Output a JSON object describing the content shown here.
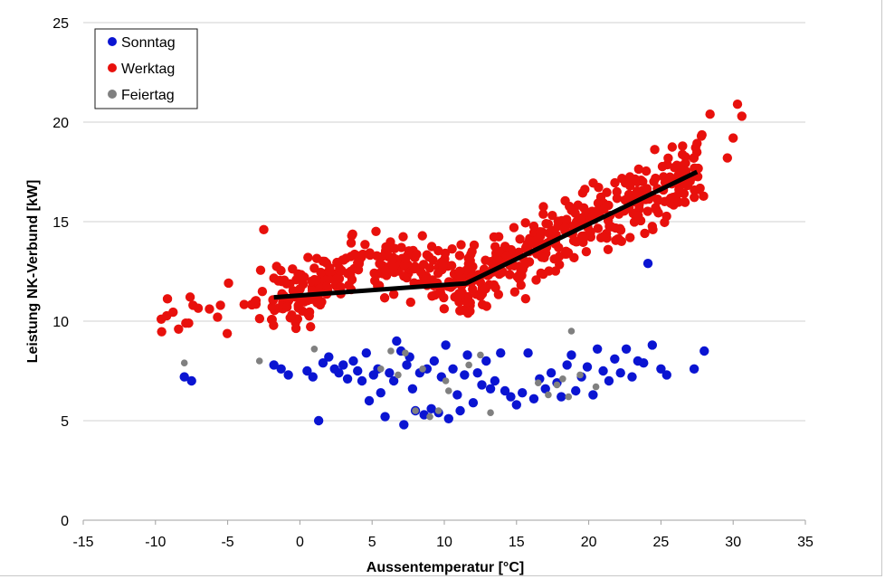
{
  "chart_data": {
    "type": "scatter",
    "xlabel": "Aussentemperatur [°C]",
    "ylabel": "Leistung NK-Verbund [kW]",
    "xlim": [
      -15,
      35
    ],
    "ylim": [
      0,
      25
    ],
    "x_ticks": [
      -15,
      -10,
      -5,
      0,
      5,
      10,
      15,
      20,
      25,
      30,
      35
    ],
    "y_ticks": [
      0,
      5,
      10,
      15,
      20,
      25
    ],
    "grid": "horizontal",
    "legend_position": "top-left",
    "series": [
      {
        "name": "Sonntag",
        "color": "#0a14d2",
        "marker": "circle",
        "points": [
          [
            -8.0,
            7.2
          ],
          [
            -7.5,
            7.0
          ],
          [
            -1.8,
            7.8
          ],
          [
            -1.3,
            7.6
          ],
          [
            -0.8,
            7.3
          ],
          [
            0.5,
            7.5
          ],
          [
            0.9,
            7.2
          ],
          [
            1.3,
            5.0
          ],
          [
            1.6,
            7.9
          ],
          [
            2.0,
            8.2
          ],
          [
            2.4,
            7.6
          ],
          [
            2.7,
            7.4
          ],
          [
            3.0,
            7.8
          ],
          [
            3.3,
            7.1
          ],
          [
            3.7,
            8.0
          ],
          [
            4.0,
            7.5
          ],
          [
            4.3,
            7.0
          ],
          [
            4.6,
            8.4
          ],
          [
            4.8,
            6.0
          ],
          [
            5.1,
            7.3
          ],
          [
            5.4,
            7.6
          ],
          [
            5.6,
            6.4
          ],
          [
            5.9,
            5.2
          ],
          [
            6.2,
            7.4
          ],
          [
            6.5,
            7.0
          ],
          [
            6.7,
            9.0
          ],
          [
            7.0,
            8.5
          ],
          [
            7.2,
            4.8
          ],
          [
            7.4,
            7.8
          ],
          [
            7.6,
            8.2
          ],
          [
            7.8,
            6.6
          ],
          [
            8.0,
            5.5
          ],
          [
            8.3,
            7.4
          ],
          [
            8.6,
            5.3
          ],
          [
            8.8,
            7.6
          ],
          [
            9.1,
            5.6
          ],
          [
            9.3,
            8.0
          ],
          [
            9.6,
            5.4
          ],
          [
            9.8,
            7.2
          ],
          [
            10.1,
            8.8
          ],
          [
            10.3,
            5.1
          ],
          [
            10.6,
            7.6
          ],
          [
            10.9,
            6.3
          ],
          [
            11.1,
            5.5
          ],
          [
            11.4,
            7.3
          ],
          [
            11.6,
            8.3
          ],
          [
            12.0,
            5.9
          ],
          [
            12.3,
            7.4
          ],
          [
            12.6,
            6.8
          ],
          [
            12.9,
            8.0
          ],
          [
            13.2,
            6.6
          ],
          [
            13.5,
            7.0
          ],
          [
            13.9,
            8.4
          ],
          [
            14.2,
            6.5
          ],
          [
            14.6,
            6.2
          ],
          [
            15.0,
            5.8
          ],
          [
            15.4,
            6.4
          ],
          [
            15.8,
            8.4
          ],
          [
            16.2,
            6.1
          ],
          [
            16.6,
            7.1
          ],
          [
            17.0,
            6.6
          ],
          [
            17.4,
            7.4
          ],
          [
            17.8,
            6.9
          ],
          [
            18.1,
            6.2
          ],
          [
            18.5,
            7.8
          ],
          [
            18.8,
            8.3
          ],
          [
            19.1,
            6.5
          ],
          [
            19.5,
            7.2
          ],
          [
            19.9,
            7.7
          ],
          [
            20.3,
            6.3
          ],
          [
            20.6,
            8.6
          ],
          [
            21.0,
            7.5
          ],
          [
            21.4,
            7.0
          ],
          [
            21.8,
            8.1
          ],
          [
            22.2,
            7.4
          ],
          [
            22.6,
            8.6
          ],
          [
            23.0,
            7.2
          ],
          [
            23.4,
            8.0
          ],
          [
            23.8,
            7.9
          ],
          [
            24.1,
            12.9
          ],
          [
            24.4,
            8.8
          ],
          [
            25.0,
            7.6
          ],
          [
            25.4,
            7.3
          ],
          [
            27.3,
            7.6
          ],
          [
            28.0,
            8.5
          ]
        ]
      },
      {
        "name": "Werktag",
        "color": "#e8100c",
        "marker": "circle",
        "points": []
      },
      {
        "name": "Feiertag",
        "color": "#808080",
        "marker": "circle",
        "points": [
          [
            -8.0,
            7.9
          ],
          [
            -2.8,
            8.0
          ],
          [
            1.0,
            8.6
          ],
          [
            5.6,
            7.6
          ],
          [
            6.3,
            8.5
          ],
          [
            6.8,
            7.3
          ],
          [
            7.3,
            8.4
          ],
          [
            8.0,
            5.5
          ],
          [
            8.5,
            7.6
          ],
          [
            9.0,
            5.2
          ],
          [
            9.6,
            5.5
          ],
          [
            10.1,
            7.0
          ],
          [
            10.3,
            6.5
          ],
          [
            11.7,
            7.8
          ],
          [
            12.5,
            8.3
          ],
          [
            13.2,
            5.4
          ],
          [
            16.5,
            6.9
          ],
          [
            17.2,
            6.3
          ],
          [
            17.8,
            6.8
          ],
          [
            18.2,
            7.1
          ],
          [
            18.6,
            6.2
          ],
          [
            18.8,
            9.5
          ],
          [
            19.4,
            7.3
          ],
          [
            20.5,
            6.7
          ]
        ]
      }
    ],
    "trend_line": {
      "color": "#000000",
      "points": [
        [
          -1.8,
          11.2
        ],
        [
          11.5,
          11.9
        ],
        [
          27.5,
          17.5
        ]
      ]
    }
  }
}
